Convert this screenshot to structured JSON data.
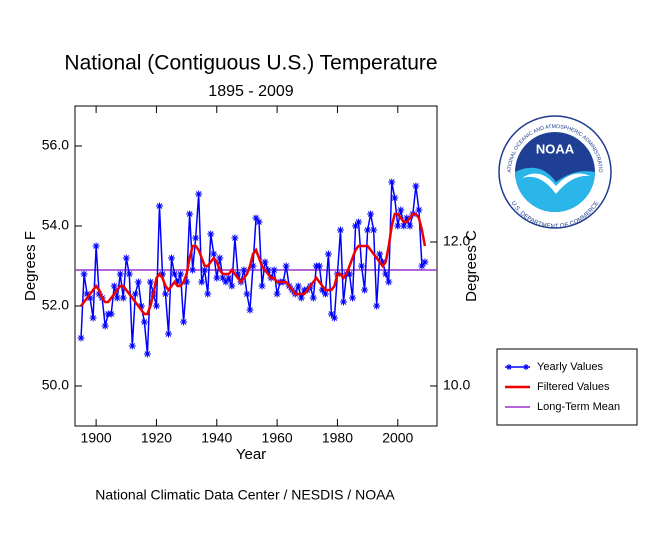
{
  "chart_data": {
    "type": "line",
    "title": "National (Contiguous U.S.) Temperature",
    "subtitle": "1895 - 2009",
    "x_label": "Year",
    "y_label": "Degrees F",
    "y2_label": "Degrees C",
    "source": "National Climatic Data Center / NESDIS / NOAA",
    "x": [
      1895,
      1896,
      1897,
      1898,
      1899,
      1900,
      1901,
      1902,
      1903,
      1904,
      1905,
      1906,
      1907,
      1908,
      1909,
      1910,
      1911,
      1912,
      1913,
      1914,
      1915,
      1916,
      1917,
      1918,
      1919,
      1920,
      1921,
      1922,
      1923,
      1924,
      1925,
      1926,
      1927,
      1928,
      1929,
      1930,
      1931,
      1932,
      1933,
      1934,
      1935,
      1936,
      1937,
      1938,
      1939,
      1940,
      1941,
      1942,
      1943,
      1944,
      1945,
      1946,
      1947,
      1948,
      1949,
      1950,
      1951,
      1952,
      1953,
      1954,
      1955,
      1956,
      1957,
      1958,
      1959,
      1960,
      1961,
      1962,
      1963,
      1964,
      1965,
      1966,
      1967,
      1968,
      1969,
      1970,
      1971,
      1972,
      1973,
      1974,
      1975,
      1976,
      1977,
      1978,
      1979,
      1980,
      1981,
      1982,
      1983,
      1984,
      1985,
      1986,
      1987,
      1988,
      1989,
      1990,
      1991,
      1992,
      1993,
      1994,
      1995,
      1996,
      1997,
      1998,
      1999,
      2000,
      2001,
      2002,
      2003,
      2004,
      2005,
      2006,
      2007,
      2008,
      2009
    ],
    "series": [
      {
        "name": "Yearly Values",
        "color": "#0000ff",
        "marker": "asterisk",
        "values": [
          51.2,
          52.8,
          52.3,
          52.2,
          51.7,
          53.5,
          52.3,
          52.2,
          51.5,
          51.8,
          51.8,
          52.5,
          52.2,
          52.8,
          52.2,
          53.2,
          52.8,
          51.0,
          52.3,
          52.6,
          52.0,
          51.6,
          50.8,
          52.6,
          52.3,
          52.0,
          54.5,
          52.8,
          52.3,
          51.3,
          53.2,
          52.8,
          52.6,
          52.8,
          51.6,
          52.6,
          54.3,
          52.9,
          53.7,
          54.8,
          52.6,
          52.9,
          52.3,
          53.8,
          53.3,
          52.7,
          53.2,
          52.7,
          52.6,
          52.7,
          52.5,
          53.7,
          52.8,
          52.6,
          52.9,
          52.3,
          51.9,
          53.0,
          54.2,
          54.1,
          52.5,
          53.1,
          52.9,
          52.7,
          52.9,
          52.3,
          52.6,
          52.6,
          53.0,
          52.5,
          52.4,
          52.3,
          52.5,
          52.2,
          52.4,
          52.4,
          52.5,
          52.2,
          53.0,
          53.0,
          52.4,
          52.3,
          53.3,
          51.8,
          51.7,
          52.8,
          53.9,
          52.1,
          52.8,
          52.8,
          52.2,
          54.0,
          54.1,
          53.0,
          52.4,
          53.9,
          54.3,
          53.9,
          52.0,
          53.3,
          53.1,
          52.8,
          52.6,
          55.1,
          54.7,
          54.0,
          54.4,
          54.0,
          54.2,
          54.0,
          54.3,
          55.0,
          54.4,
          53.0,
          53.1
        ]
      },
      {
        "name": "Filtered Values",
        "color": "#ee0000",
        "values": [
          52.0,
          52.1,
          52.2,
          52.3,
          52.4,
          52.5,
          52.4,
          52.2,
          52.1,
          52.1,
          52.2,
          52.3,
          52.4,
          52.5,
          52.5,
          52.4,
          52.3,
          52.2,
          52.1,
          52.0,
          51.9,
          51.8,
          51.8,
          52.0,
          52.3,
          52.7,
          52.8,
          52.7,
          52.5,
          52.4,
          52.5,
          52.6,
          52.5,
          52.5,
          52.6,
          52.8,
          53.2,
          53.5,
          53.5,
          53.4,
          53.2,
          53.0,
          53.0,
          53.1,
          53.2,
          53.1,
          52.9,
          52.8,
          52.8,
          52.8,
          52.9,
          52.8,
          52.7,
          52.6,
          52.7,
          52.8,
          53.0,
          53.3,
          53.4,
          53.2,
          53.0,
          52.9,
          52.8,
          52.7,
          52.7,
          52.6,
          52.6,
          52.6,
          52.6,
          52.5,
          52.4,
          52.3,
          52.3,
          52.3,
          52.3,
          52.4,
          52.5,
          52.6,
          52.7,
          52.6,
          52.5,
          52.4,
          52.4,
          52.4,
          52.5,
          52.8,
          52.8,
          52.7,
          52.8,
          53.0,
          53.2,
          53.4,
          53.5,
          53.5,
          53.5,
          53.5,
          53.4,
          53.3,
          53.2,
          53.1,
          53.0,
          53.1,
          53.5,
          54.0,
          54.3,
          54.3,
          54.2,
          54.1,
          54.1,
          54.2,
          54.3,
          54.3,
          54.2,
          53.9,
          53.5
        ]
      }
    ],
    "mean": {
      "name": "Long-Term Mean",
      "color": "#9933cc",
      "value": 52.9
    },
    "xlim": [
      1893,
      2013
    ],
    "xticks": [
      1900,
      1920,
      1940,
      1960,
      1980,
      2000
    ],
    "ylim": [
      49,
      57
    ],
    "yticks": [
      {
        "value": 50,
        "label": "50.0"
      },
      {
        "value": 52,
        "label": "52.0"
      },
      {
        "value": 54,
        "label": "54.0"
      },
      {
        "value": 56,
        "label": "56.0"
      }
    ],
    "y2lim": [
      9.444,
      13.889
    ],
    "y2ticks": [
      {
        "value": 10,
        "label": "10.0"
      },
      {
        "value": 12,
        "label": "12.0"
      }
    ],
    "legend": "right"
  },
  "logo": {
    "name": "NOAA",
    "ring_top": "NATIONAL OCEANIC AND ATMOSPHERIC ADMINISTRATION",
    "ring_bottom": "U.S. DEPARTMENT OF COMMERCE"
  }
}
